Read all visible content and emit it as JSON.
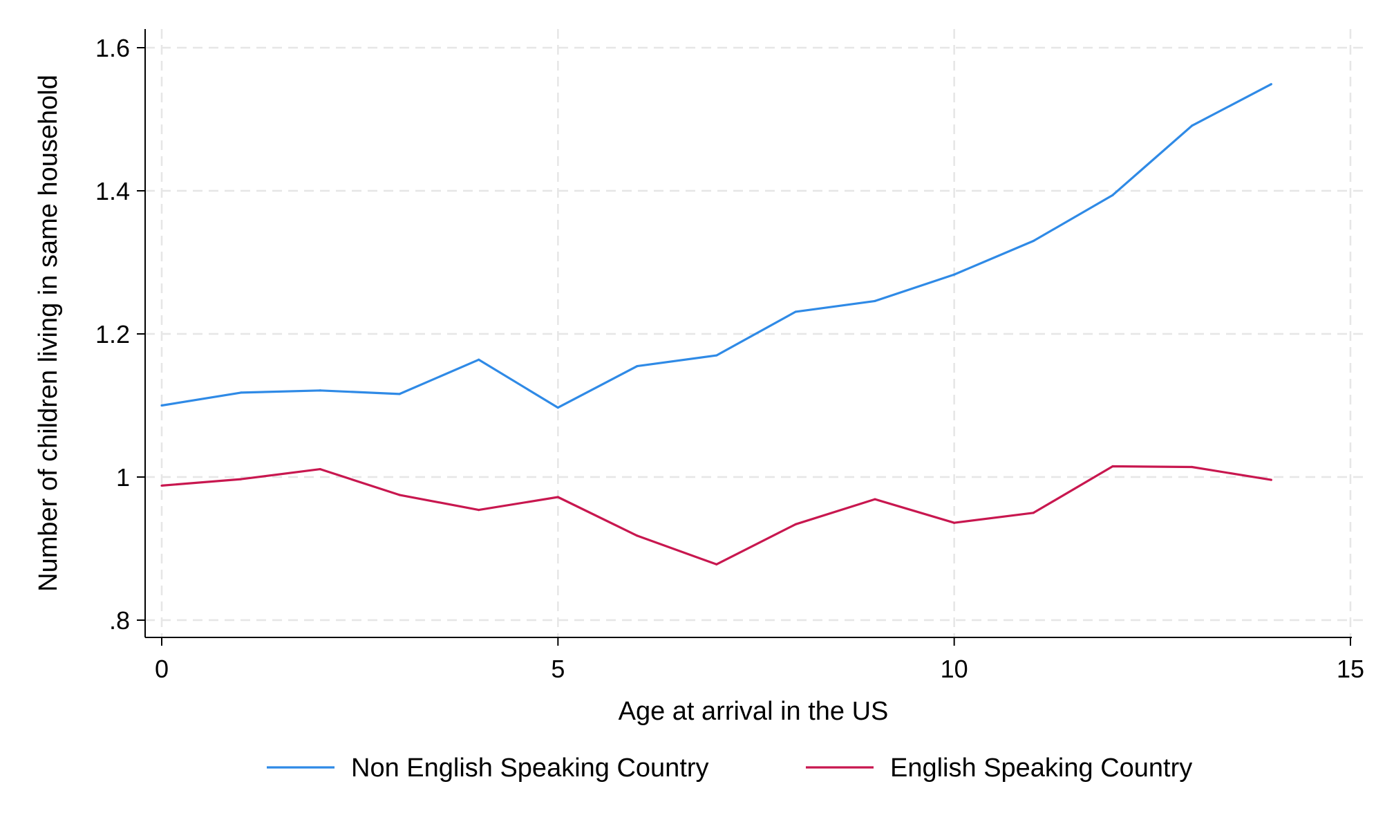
{
  "chart_data": {
    "type": "line",
    "title": "",
    "xlabel": "Age at arrival in the US",
    "ylabel": "Number of children living in same household",
    "xlim": [
      0,
      15
    ],
    "ylim": [
      0.8,
      1.6
    ],
    "xticks": [
      0,
      5,
      10,
      15
    ],
    "xtick_labels": [
      "0",
      "5",
      "10",
      "15"
    ],
    "yticks": [
      0.8,
      1.0,
      1.2,
      1.4,
      1.6
    ],
    "ytick_labels": [
      ".8",
      "1",
      "1.2",
      "1.4",
      "1.6"
    ],
    "grid": true,
    "legend_position": "bottom",
    "x": [
      0,
      1,
      2,
      3,
      4,
      5,
      6,
      7,
      8,
      9,
      10,
      11,
      12,
      13,
      14
    ],
    "series": [
      {
        "name": "Non English Speaking Country",
        "color": "#2f8ae6",
        "values": [
          1.1,
          1.118,
          1.121,
          1.116,
          1.164,
          1.097,
          1.155,
          1.17,
          1.231,
          1.246,
          1.283,
          1.33,
          1.394,
          1.491,
          1.549
        ]
      },
      {
        "name": "English Speaking Country",
        "color": "#c8174f",
        "values": [
          0.988,
          0.997,
          1.011,
          0.975,
          0.954,
          0.972,
          0.918,
          0.878,
          0.934,
          0.969,
          0.936,
          0.95,
          1.015,
          1.014,
          0.996
        ]
      }
    ]
  }
}
